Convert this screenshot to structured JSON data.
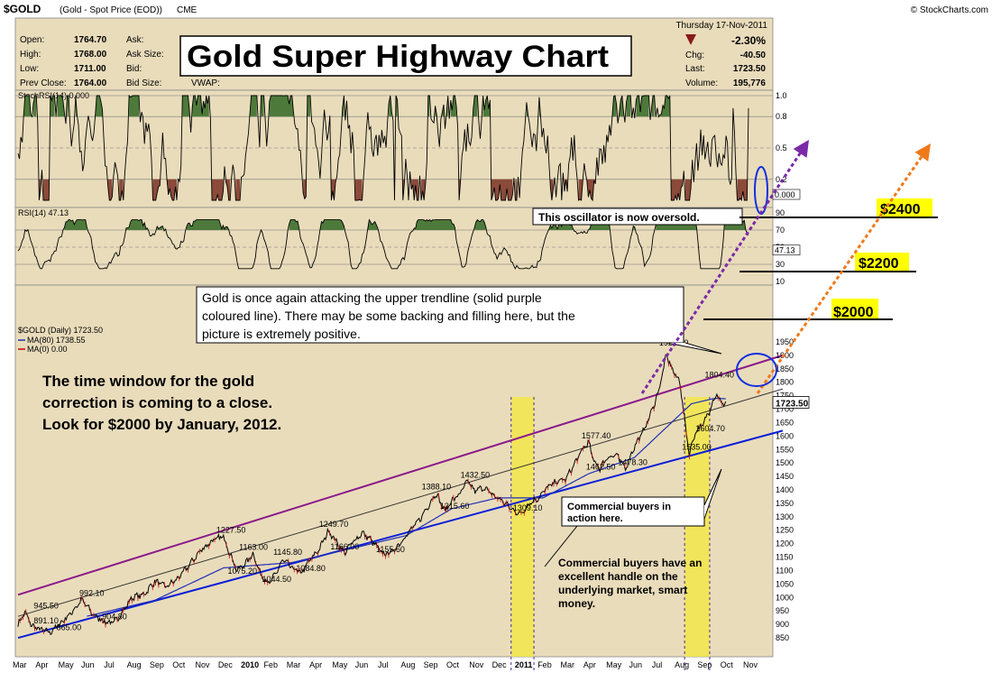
{
  "chart_data": {
    "type": "line",
    "symbol": "$GOLD",
    "symbol_desc": "(Gold - Spot Price (EOD))",
    "exchange": "CME",
    "source": "© StockCharts.com",
    "date_line": "Thursday   17-Nov-2011",
    "quote": {
      "open_label": "Open:",
      "open": "1764.70",
      "high_label": "High:",
      "high": "1768.00",
      "low_label": "Low:",
      "low": "1711.00",
      "prev_label": "Prev Close:",
      "prev": "1764.00",
      "ask_label": "Ask:",
      "asksize_label": "Ask Size:",
      "bid_label": "Bid:",
      "bidsize_label": "Bid Size:",
      "vwap_label": "VWAP:",
      "pct": "-2.30%",
      "chg_label": "Chg:",
      "chg": "-40.50",
      "last_label": "Last:",
      "last": "1723.50",
      "vol_label": "Volume:",
      "vol": "195,776"
    },
    "title": "Gold Super Highway Chart",
    "stoch_panel": {
      "label": "StochRSI(14) 0.000",
      "ticks": [
        "1.0",
        "0.8",
        "0.5",
        "0.2"
      ],
      "tick_values": [
        1.0,
        0.8,
        0.5,
        0.2
      ],
      "last": "0.000",
      "last_value": 0.0
    },
    "rsi_panel": {
      "label": "RSI(14) 47.13",
      "ticks": [
        "90",
        "70",
        "50",
        "30",
        "10"
      ],
      "tick_values": [
        90,
        70,
        50,
        30,
        10
      ],
      "last": "47.13",
      "last_value": 47.13
    },
    "price_panel": {
      "legend": "$GOLD (Daily) 1723.50",
      "ma80": "MA(80) 1738.55",
      "ma0": "MA(0) 0.00",
      "ticks": [
        "1950",
        "1900",
        "1850",
        "1800",
        "1750",
        "1700",
        "1650",
        "1600",
        "1550",
        "1500",
        "1450",
        "1400",
        "1350",
        "1300",
        "1250",
        "1200",
        "1150",
        "1100",
        "1050",
        "1000",
        "950",
        "900",
        "850"
      ],
      "tick_values": [
        1950,
        1900,
        1850,
        1800,
        1750,
        1700,
        1650,
        1600,
        1550,
        1500,
        1450,
        1400,
        1350,
        1300,
        1250,
        1200,
        1150,
        1100,
        1050,
        1000,
        950,
        900,
        850
      ],
      "last_label": "1723.50",
      "last_value": 1723.5,
      "price_range": [
        820,
        1980
      ],
      "pivot_labels": [
        {
          "text": "945.50",
          "i": 1,
          "v": 945.5
        },
        {
          "text": "891.10",
          "i": 1,
          "v": 891.1
        },
        {
          "text": "865.00",
          "i": 2,
          "v": 865
        },
        {
          "text": "992.10",
          "i": 3,
          "v": 992.1
        },
        {
          "text": "904.80",
          "i": 4,
          "v": 904.8
        },
        {
          "text": "1227.50",
          "i": 9,
          "v": 1227.5
        },
        {
          "text": "1163.00",
          "i": 10,
          "v": 1163
        },
        {
          "text": "1075.20",
          "i": 9.5,
          "v": 1075.2
        },
        {
          "text": "1044.50",
          "i": 11,
          "v": 1044.5
        },
        {
          "text": "1145.80",
          "i": 11.5,
          "v": 1145.8
        },
        {
          "text": "1084.80",
          "i": 12.5,
          "v": 1084.8
        },
        {
          "text": "1249.70",
          "i": 13.5,
          "v": 1249.7
        },
        {
          "text": "1166.00",
          "i": 14,
          "v": 1166
        },
        {
          "text": "1155.60",
          "i": 16,
          "v": 1155.6
        },
        {
          "text": "1388.10",
          "i": 18,
          "v": 1388.1
        },
        {
          "text": "1315.60",
          "i": 18.8,
          "v": 1315.6
        },
        {
          "text": "1432.50",
          "i": 19.7,
          "v": 1432.5
        },
        {
          "text": "1309.10",
          "i": 22,
          "v": 1309.1
        },
        {
          "text": "1577.40",
          "i": 25,
          "v": 1577.4
        },
        {
          "text": "1462.50",
          "i": 25.2,
          "v": 1462.5
        },
        {
          "text": "1478.30",
          "i": 26.6,
          "v": 1478.3
        },
        {
          "text": "1923.70",
          "i": 28.4,
          "v": 1923.7
        },
        {
          "text": "1535.00",
          "i": 29.4,
          "v": 1535
        },
        {
          "text": "1604.70",
          "i": 30,
          "v": 1604.7
        },
        {
          "text": "1804.40",
          "i": 30.4,
          "v": 1804.4
        }
      ],
      "close_anchors": [
        [
          0,
          900
        ],
        [
          0.3,
          945
        ],
        [
          0.6,
          895
        ],
        [
          1,
          880
        ],
        [
          1.4,
          870
        ],
        [
          1.8,
          900
        ],
        [
          2.3,
          940
        ],
        [
          2.8,
          992
        ],
        [
          3.3,
          935
        ],
        [
          3.8,
          910
        ],
        [
          4.2,
          905
        ],
        [
          4.6,
          950
        ],
        [
          5,
          1000
        ],
        [
          5.5,
          1010
        ],
        [
          6,
          1060
        ],
        [
          6.5,
          1040
        ],
        [
          7,
          1070
        ],
        [
          7.5,
          1120
        ],
        [
          8,
          1175
        ],
        [
          8.5,
          1210
        ],
        [
          9,
          1227
        ],
        [
          9.3,
          1160
        ],
        [
          9.6,
          1100
        ],
        [
          10,
          1130
        ],
        [
          10.3,
          1163
        ],
        [
          10.6,
          1090
        ],
        [
          11,
          1050
        ],
        [
          11.3,
          1090
        ],
        [
          11.6,
          1140
        ],
        [
          12,
          1110
        ],
        [
          12.4,
          1090
        ],
        [
          12.8,
          1140
        ],
        [
          13.2,
          1180
        ],
        [
          13.6,
          1249
        ],
        [
          14,
          1200
        ],
        [
          14.3,
          1166
        ],
        [
          14.7,
          1210
        ],
        [
          15.1,
          1240
        ],
        [
          15.5,
          1210
        ],
        [
          16,
          1160
        ],
        [
          16.4,
          1170
        ],
        [
          16.8,
          1210
        ],
        [
          17.2,
          1250
        ],
        [
          17.6,
          1290
        ],
        [
          18,
          1345
        ],
        [
          18.3,
          1388
        ],
        [
          18.7,
          1320
        ],
        [
          19,
          1360
        ],
        [
          19.3,
          1380
        ],
        [
          19.7,
          1432
        ],
        [
          20,
          1395
        ],
        [
          20.4,
          1410
        ],
        [
          20.8,
          1380
        ],
        [
          21.2,
          1360
        ],
        [
          21.6,
          1330
        ],
        [
          22,
          1309
        ],
        [
          22.4,
          1350
        ],
        [
          22.8,
          1370
        ],
        [
          23.2,
          1410
        ],
        [
          23.6,
          1430
        ],
        [
          24,
          1440
        ],
        [
          24.4,
          1500
        ],
        [
          24.8,
          1560
        ],
        [
          25,
          1577
        ],
        [
          25.2,
          1510
        ],
        [
          25.5,
          1480
        ],
        [
          25.8,
          1520
        ],
        [
          26.2,
          1530
        ],
        [
          26.6,
          1480
        ],
        [
          27,
          1560
        ],
        [
          27.4,
          1620
        ],
        [
          27.8,
          1700
        ],
        [
          28.1,
          1780
        ],
        [
          28.4,
          1900
        ],
        [
          28.7,
          1840
        ],
        [
          29,
          1800
        ],
        [
          29.2,
          1660
        ],
        [
          29.4,
          1535
        ],
        [
          29.7,
          1620
        ],
        [
          30,
          1640
        ],
        [
          30.3,
          1700
        ],
        [
          30.6,
          1760
        ],
        [
          30.8,
          1720
        ],
        [
          31,
          1723.5
        ]
      ],
      "ma_anchors": [
        [
          3,
          930
        ],
        [
          6,
          990
        ],
        [
          9,
          1110
        ],
        [
          12,
          1130
        ],
        [
          15,
          1190
        ],
        [
          17,
          1230
        ],
        [
          19,
          1330
        ],
        [
          21,
          1370
        ],
        [
          23,
          1370
        ],
        [
          25,
          1460
        ],
        [
          27,
          1520
        ],
        [
          28.5,
          1640
        ],
        [
          29.5,
          1720
        ],
        [
          30.5,
          1740
        ],
        [
          31,
          1738.55
        ]
      ],
      "upper_trend": {
        "i0": 0,
        "v0": 1010,
        "i1": 33.5,
        "v1": 1900
      },
      "mid_trend": {
        "i0": 0,
        "v0": 930,
        "i1": 33.5,
        "v1": 1775
      },
      "lower_trend": {
        "i0": 0,
        "v0": 850,
        "i1": 33.5,
        "v1": 1620
      }
    },
    "x_labels": [
      {
        "text": "Mar",
        "i": 0
      },
      {
        "text": "Apr",
        "i": 1
      },
      {
        "text": "May",
        "i": 2
      },
      {
        "text": "Jun",
        "i": 3
      },
      {
        "text": "Jul",
        "i": 4
      },
      {
        "text": "Aug",
        "i": 5
      },
      {
        "text": "Sep",
        "i": 6
      },
      {
        "text": "Oct",
        "i": 7
      },
      {
        "text": "Nov",
        "i": 8
      },
      {
        "text": "Dec",
        "i": 9
      },
      {
        "text": "2010",
        "i": 10,
        "bold": true
      },
      {
        "text": "Feb",
        "i": 11
      },
      {
        "text": "Mar",
        "i": 12
      },
      {
        "text": "Apr",
        "i": 13
      },
      {
        "text": "May",
        "i": 14
      },
      {
        "text": "Jun",
        "i": 15
      },
      {
        "text": "Jul",
        "i": 16
      },
      {
        "text": "Aug",
        "i": 17
      },
      {
        "text": "Sep",
        "i": 18
      },
      {
        "text": "Oct",
        "i": 19
      },
      {
        "text": "Nov",
        "i": 20
      },
      {
        "text": "Dec",
        "i": 21
      },
      {
        "text": "2011",
        "i": 22,
        "bold": true
      },
      {
        "text": "Feb",
        "i": 23
      },
      {
        "text": "Mar",
        "i": 24
      },
      {
        "text": "Apr",
        "i": 25
      },
      {
        "text": "May",
        "i": 26
      },
      {
        "text": "Jun",
        "i": 27
      },
      {
        "text": "Jul",
        "i": 28
      },
      {
        "text": "Aug",
        "i": 29
      },
      {
        "text": "Sep",
        "i": 30
      },
      {
        "text": "Oct",
        "i": 31
      },
      {
        "text": "Nov",
        "i": 32
      }
    ],
    "annotations": {
      "oversold": "This oscillator is now oversold.",
      "trendline_line1": "Gold is once again attacking the upper trendline (solid purple",
      "trendline_line2": "coloured line).  There may be some backing and filling here, but the",
      "trendline_line3": "picture is extremely positive.",
      "window_line1": "The time window for the gold",
      "window_line2": "correction is coming to a close.",
      "window_line3": "Look for $2000 by January, 2012.",
      "buyers_line1": "Commercial buyers in",
      "buyers_line2": "action here.",
      "handle_line1": "Commercial buyers have an",
      "handle_line2": "excellent handle on the",
      "handle_line3": "underlying market, smart",
      "handle_line4": "money.",
      "target_2400": "$2400",
      "target_2200": "$2200",
      "target_2000": "$2000"
    },
    "colors": {
      "panel_bg": "#E9DCBB",
      "price_line": "#000000",
      "ma_line": "#1F2FB8",
      "upper_trend": "#8B1A8B",
      "lower_trend": "#0A1FD6",
      "mid_trend": "#333333",
      "highlight": "#F2E64A",
      "overbought_fill": "#4D7A3A",
      "oversold_fill": "#8B4A3A",
      "target_bg": "#FFFF00",
      "arrow_orange": "#F07A1A",
      "arrow_purple": "#7B2AA8",
      "pct_red": "#CC0000"
    }
  }
}
